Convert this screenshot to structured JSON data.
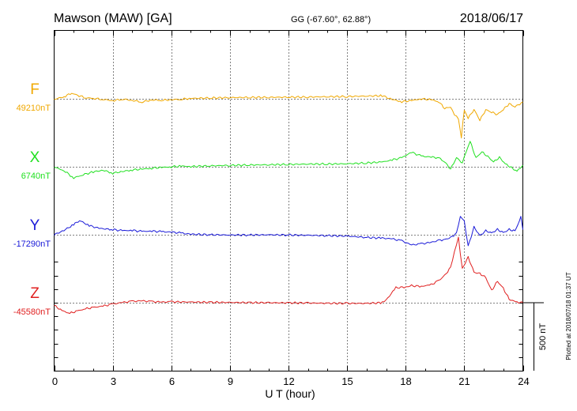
{
  "header": {
    "station": "Mawson (MAW)  [GA]",
    "coords": "GG (-67.60°,  62.88°)",
    "date": "2018/06/17"
  },
  "footer": {
    "plotted": "Plotted at 2018/07/18 01:37 UT"
  },
  "chart_data": {
    "type": "line",
    "title": "Mawson (MAW)  [GA]",
    "xlabel": "U T (hour)",
    "xlim": [
      0,
      24
    ],
    "xticks": [
      0,
      3,
      6,
      9,
      12,
      15,
      18,
      21,
      24
    ],
    "grid": "dotted vertical lines every 3 hours, dotted baseline per component",
    "y_units": "nT",
    "scale_bar": {
      "label": "500 nT",
      "value_nT": 500
    },
    "series": [
      {
        "name": "F",
        "baseline_label": "49210nT",
        "baseline_nT": 49210,
        "color": "#f0a800",
        "x": [
          0,
          0.5,
          0.9,
          1.2,
          1.6,
          2.0,
          2.5,
          3.0,
          3.5,
          4.0,
          4.5,
          5.0,
          5.5,
          6.0,
          6.5,
          7.0,
          8.0,
          9.0,
          10.0,
          11.0,
          12.0,
          13.0,
          14.0,
          15.0,
          16.0,
          16.8,
          17.3,
          17.8,
          18.3,
          18.8,
          19.3,
          19.7,
          20.0,
          20.3,
          20.5,
          20.7,
          20.85,
          21.0,
          21.2,
          21.5,
          21.8,
          22.1,
          22.4,
          22.7,
          23.0,
          23.3,
          23.6,
          24.0
        ],
        "values": [
          49206,
          49225,
          49252,
          49236,
          49218,
          49213,
          49206,
          49196,
          49208,
          49198,
          49187,
          49201,
          49200,
          49203,
          49207,
          49213,
          49216,
          49219,
          49220,
          49221,
          49222,
          49223,
          49225,
          49227,
          49230,
          49233,
          49205,
          49189,
          49197,
          49210,
          49203,
          49188,
          49138,
          49153,
          49092,
          49064,
          48925,
          49128,
          49067,
          49132,
          49052,
          49130,
          49111,
          49095,
          49131,
          49174,
          49151,
          49186
        ]
      },
      {
        "name": "X",
        "baseline_label": "6740nT",
        "baseline_nT": 6740,
        "color": "#20e020",
        "x": [
          0,
          0.5,
          1.0,
          1.4,
          2.0,
          2.5,
          3.0,
          3.5,
          4.0,
          4.5,
          5.0,
          5.5,
          6.0,
          6.5,
          7.0,
          8.0,
          9.0,
          10.0,
          11.0,
          12.0,
          13.0,
          14.0,
          15.0,
          16.0,
          16.8,
          17.3,
          17.8,
          18.3,
          18.8,
          19.3,
          19.7,
          20.0,
          20.3,
          20.6,
          20.9,
          21.1,
          21.3,
          21.6,
          21.9,
          22.2,
          22.5,
          22.8,
          23.1,
          23.4,
          23.7,
          24.0
        ],
        "values": [
          6738,
          6712,
          6658,
          6678,
          6702,
          6715,
          6693,
          6705,
          6717,
          6723,
          6730,
          6735,
          6740,
          6745,
          6742,
          6747,
          6750,
          6753,
          6755,
          6757,
          6760,
          6760,
          6762,
          6768,
          6775,
          6790,
          6806,
          6847,
          6818,
          6812,
          6805,
          6776,
          6722,
          6808,
          6767,
          6849,
          6926,
          6806,
          6849,
          6817,
          6775,
          6810,
          6761,
          6735,
          6707,
          6751
        ]
      },
      {
        "name": "Y",
        "baseline_label": "-17290nT",
        "baseline_nT": -17290,
        "color": "#1a1ad8",
        "x": [
          0,
          0.5,
          1.0,
          1.3,
          1.8,
          2.3,
          3.0,
          3.5,
          4.0,
          4.5,
          5.0,
          5.5,
          6.0,
          6.5,
          7.0,
          8.0,
          9.0,
          10.0,
          11.0,
          12.0,
          13.0,
          14.0,
          15.0,
          16.0,
          16.8,
          17.3,
          17.8,
          18.3,
          18.8,
          19.3,
          19.7,
          20.0,
          20.3,
          20.6,
          20.8,
          21.0,
          21.2,
          21.5,
          21.8,
          22.1,
          22.4,
          22.7,
          23.0,
          23.3,
          23.6,
          23.9,
          24.0
        ],
        "values": [
          -17290,
          -17258,
          -17215,
          -17185,
          -17223,
          -17243,
          -17252,
          -17260,
          -17258,
          -17266,
          -17263,
          -17268,
          -17270,
          -17278,
          -17286,
          -17290,
          -17292,
          -17292,
          -17290,
          -17292,
          -17294,
          -17297,
          -17300,
          -17310,
          -17315,
          -17320,
          -17335,
          -17365,
          -17357,
          -17346,
          -17332,
          -17325,
          -17312,
          -17278,
          -17160,
          -17192,
          -17375,
          -17233,
          -17298,
          -17260,
          -17278,
          -17251,
          -17275,
          -17252,
          -17262,
          -17162,
          -17252
        ]
      },
      {
        "name": "Z",
        "baseline_label": "-45580nT",
        "baseline_nT": -45580,
        "color": "#e02020",
        "x": [
          0,
          0.4,
          0.8,
          1.2,
          1.6,
          2.0,
          2.5,
          3.0,
          3.5,
          4.0,
          4.5,
          5.0,
          5.5,
          6.0,
          7.0,
          8.0,
          9.0,
          10.0,
          11.0,
          12.0,
          13.0,
          14.0,
          15.0,
          16.0,
          16.8,
          17.0,
          17.5,
          18.0,
          18.3,
          18.8,
          19.3,
          19.7,
          20.0,
          20.3,
          20.5,
          20.7,
          20.9,
          21.2,
          21.5,
          21.8,
          22.1,
          22.4,
          22.7,
          23.0,
          23.3,
          23.7,
          24.0
        ],
        "values": [
          -45600,
          -45638,
          -45658,
          -45640,
          -45625,
          -45615,
          -45605,
          -45590,
          -45578,
          -45570,
          -45566,
          -45572,
          -45575,
          -45573,
          -45575,
          -45577,
          -45578,
          -45579,
          -45580,
          -45581,
          -45582,
          -45584,
          -45585,
          -45585,
          -45580,
          -45560,
          -45470,
          -45465,
          -45455,
          -45460,
          -45448,
          -45416,
          -45380,
          -45320,
          -45207,
          -45101,
          -45330,
          -45244,
          -45357,
          -45365,
          -45396,
          -45490,
          -45423,
          -45474,
          -45555,
          -45576,
          -45580
        ]
      }
    ]
  }
}
